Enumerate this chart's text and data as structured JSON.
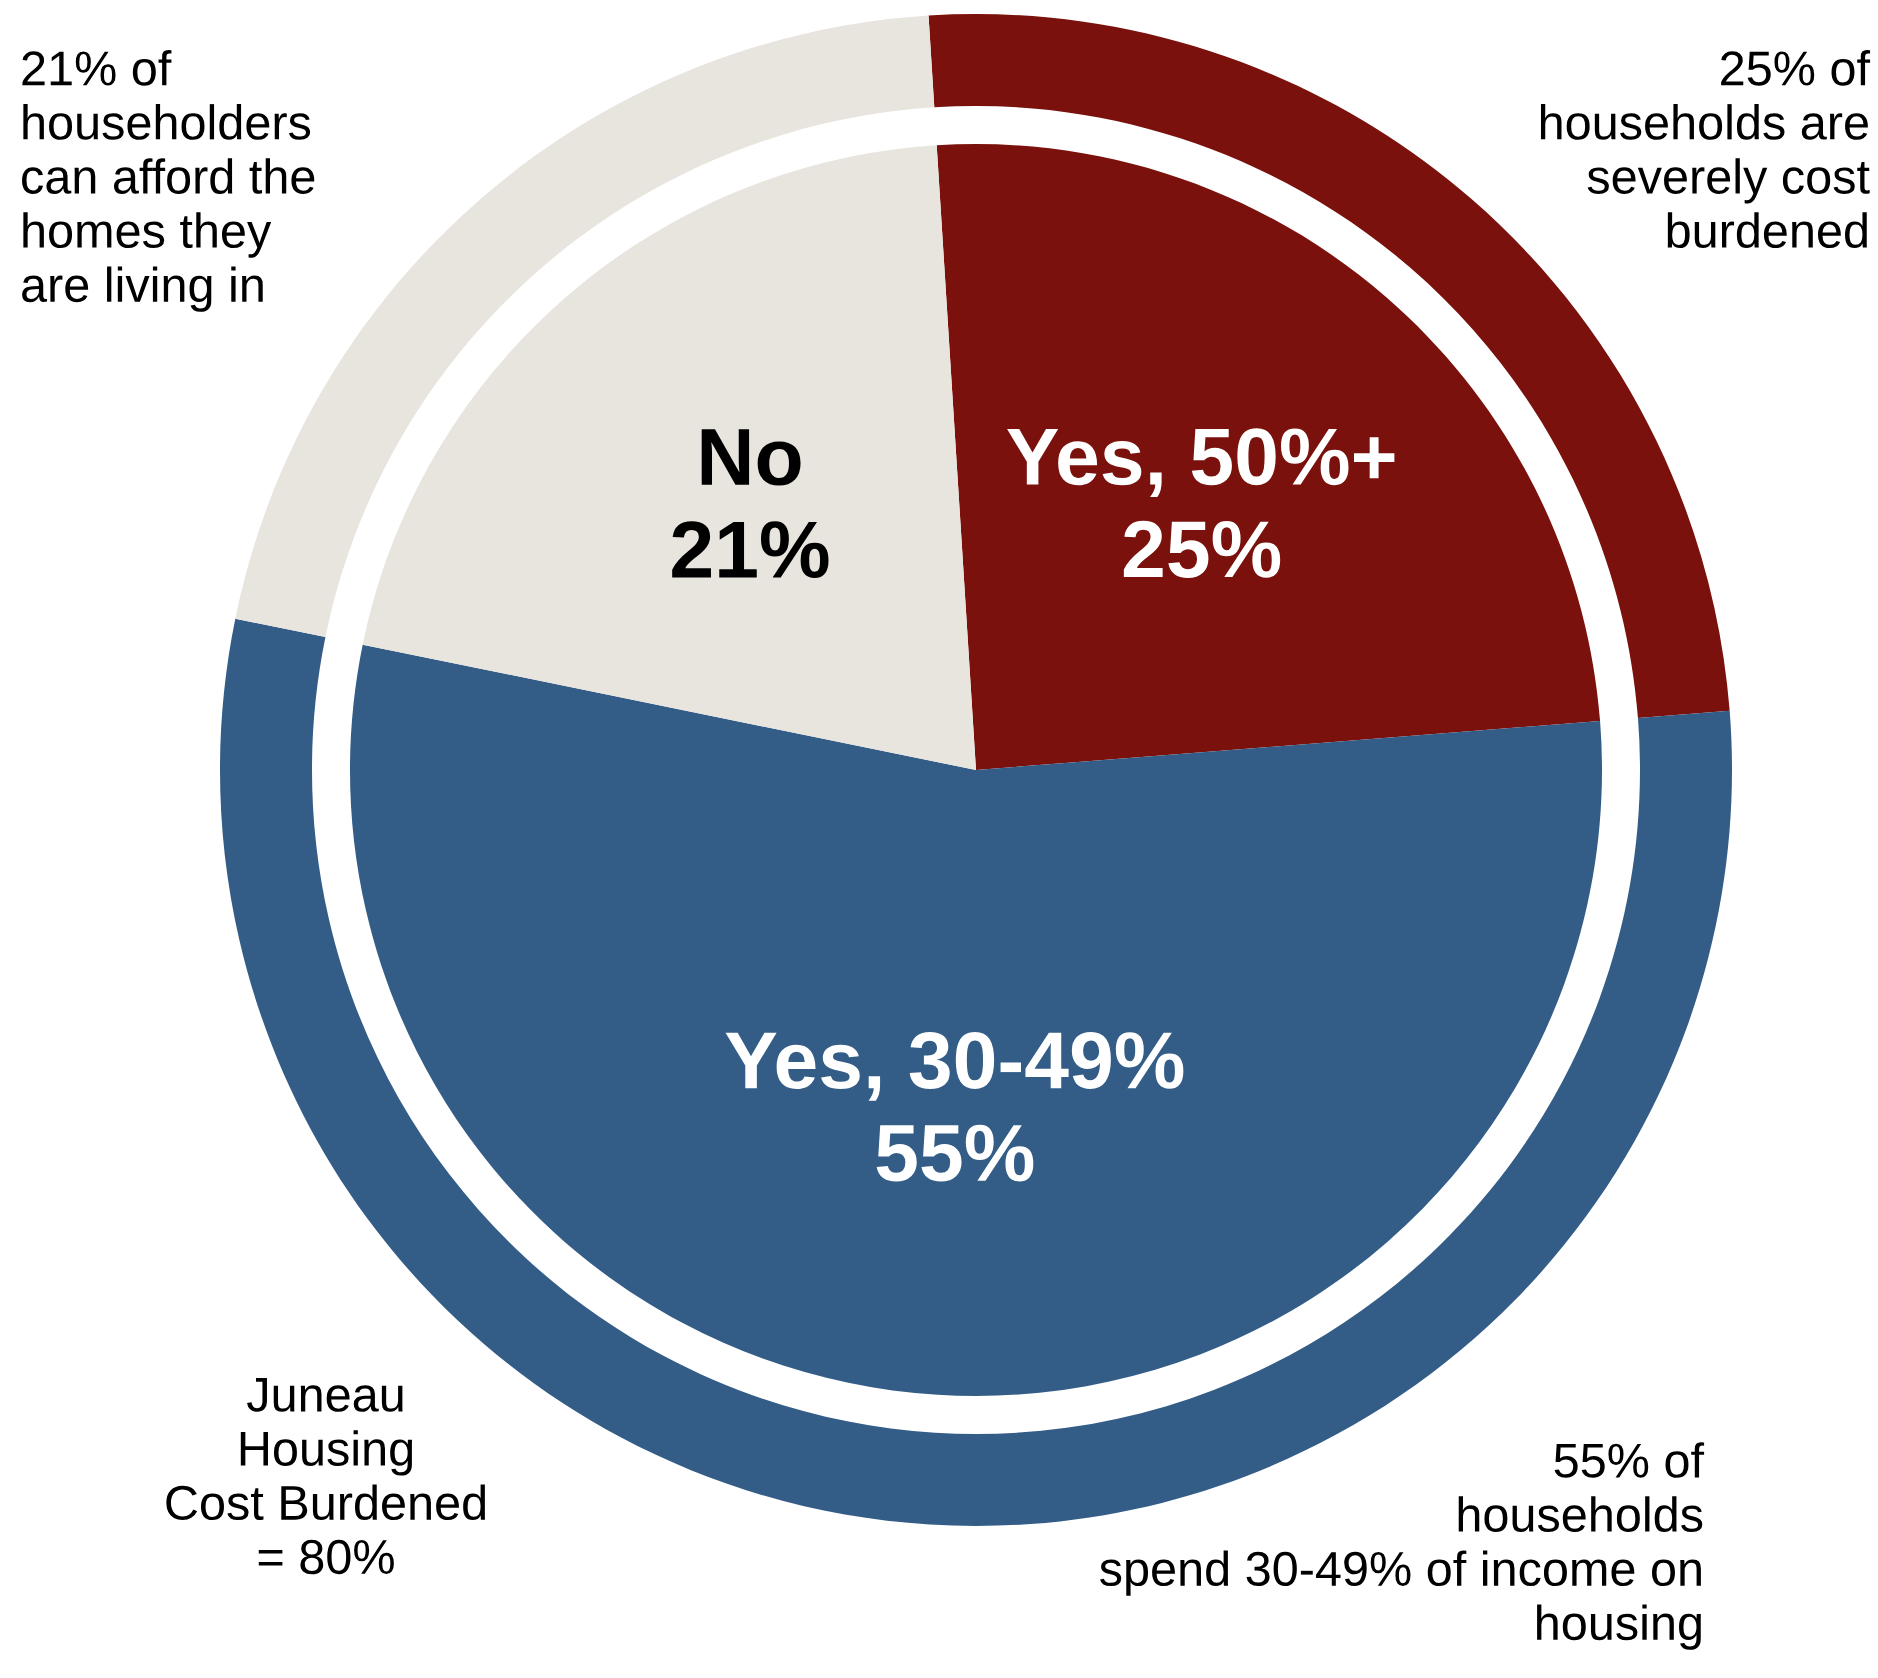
{
  "chart_data": {
    "type": "pie",
    "categories": [
      "Yes, 50%+",
      "Yes, 30-49%",
      "No"
    ],
    "series": [
      {
        "values": [
          25,
          55,
          21
        ],
        "value_labels": [
          "25%",
          "55%",
          "21%"
        ]
      },
      {
        "values": [
          25,
          55,
          21
        ]
      }
    ],
    "colors": [
      "#7a110c",
      "#335d87",
      "#e8e5df"
    ],
    "annotations": [
      "21% of\nhouseholders\ncan afford the\nhomes they\nare living in",
      "25% of\nhouseholds are\nseverely cost\nburdened",
      "Juneau\nHousing\nCost Burdened\n= 80%",
      "55% of\nhouseholds\nspend 30-49% of income on\nhousing"
    ]
  }
}
